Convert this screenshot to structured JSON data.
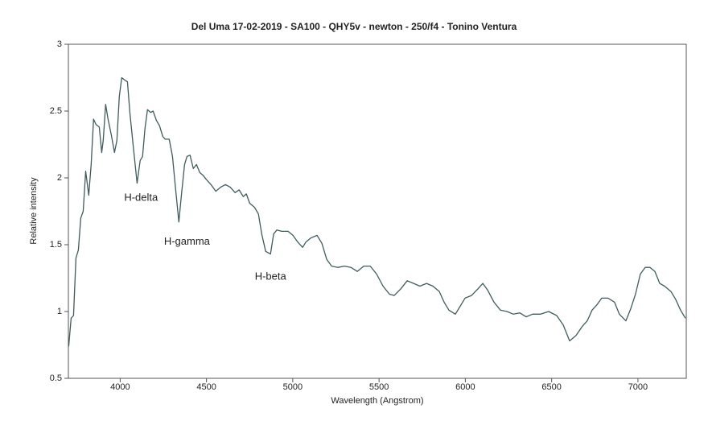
{
  "chart_data": {
    "type": "line",
    "title": "Del Uma 17-02-2019 - SA100 - QHY5v - newton - 250/f4 - Tonino Ventura",
    "xlabel": "Wavelength (Angstrom)",
    "ylabel": "Relative intensity",
    "color": "#3f5c5c",
    "xlim": [
      3700,
      7280
    ],
    "ylim": [
      0.5,
      3
    ],
    "xticks": [
      4000,
      4500,
      5000,
      5500,
      6000,
      6500,
      7000
    ],
    "yticks": [
      0.5,
      1,
      1.5,
      2,
      2.5,
      3
    ],
    "annotations": [
      {
        "text": "H-delta",
        "x": 4121,
        "y": 1.85
      },
      {
        "text": "H-gamma",
        "x": 4387,
        "y": 1.52
      },
      {
        "text": "H-beta",
        "x": 4871,
        "y": 1.26
      }
    ],
    "x": [
      3702,
      3716,
      3730,
      3744,
      3758,
      3772,
      3786,
      3800,
      3818,
      3832,
      3846,
      3860,
      3879,
      3893,
      3902,
      3916,
      3930,
      3949,
      3967,
      3981,
      3995,
      4009,
      4028,
      4042,
      4056,
      4075,
      4098,
      4116,
      4130,
      4144,
      4158,
      4177,
      4191,
      4210,
      4228,
      4247,
      4261,
      4284,
      4303,
      4321,
      4340,
      4354,
      4373,
      4387,
      4405,
      4424,
      4442,
      4461,
      4480,
      4498,
      4526,
      4554,
      4582,
      4610,
      4638,
      4666,
      4689,
      4713,
      4731,
      4750,
      4778,
      4801,
      4820,
      4843,
      4871,
      4889,
      4908,
      4936,
      4973,
      5001,
      5029,
      5057,
      5076,
      5104,
      5141,
      5169,
      5197,
      5225,
      5262,
      5300,
      5337,
      5374,
      5411,
      5449,
      5486,
      5523,
      5560,
      5588,
      5626,
      5663,
      5700,
      5737,
      5775,
      5812,
      5849,
      5877,
      5905,
      5942,
      5970,
      5998,
      6036,
      6073,
      6101,
      6129,
      6166,
      6203,
      6241,
      6278,
      6315,
      6352,
      6389,
      6436,
      6483,
      6529,
      6567,
      6604,
      6641,
      6678,
      6706,
      6734,
      6762,
      6790,
      6827,
      6864,
      6892,
      6930,
      6958,
      6986,
      7014,
      7042,
      7070,
      7098,
      7126,
      7154,
      7191,
      7219,
      7247,
      7275
    ],
    "values": [
      0.74,
      0.95,
      0.97,
      1.4,
      1.46,
      1.7,
      1.75,
      2.05,
      1.87,
      2.1,
      2.44,
      2.4,
      2.38,
      2.19,
      2.28,
      2.55,
      2.44,
      2.32,
      2.19,
      2.28,
      2.61,
      2.75,
      2.73,
      2.72,
      2.49,
      2.25,
      1.96,
      2.13,
      2.16,
      2.37,
      2.51,
      2.49,
      2.5,
      2.43,
      2.39,
      2.31,
      2.29,
      2.29,
      2.16,
      1.92,
      1.67,
      1.86,
      2.1,
      2.16,
      2.17,
      2.07,
      2.1,
      2.04,
      2.02,
      1.99,
      1.95,
      1.9,
      1.93,
      1.95,
      1.93,
      1.89,
      1.91,
      1.86,
      1.88,
      1.81,
      1.78,
      1.73,
      1.58,
      1.45,
      1.43,
      1.58,
      1.61,
      1.6,
      1.6,
      1.57,
      1.52,
      1.48,
      1.52,
      1.55,
      1.57,
      1.51,
      1.39,
      1.34,
      1.33,
      1.34,
      1.33,
      1.3,
      1.34,
      1.34,
      1.28,
      1.19,
      1.13,
      1.12,
      1.17,
      1.23,
      1.21,
      1.19,
      1.21,
      1.19,
      1.15,
      1.07,
      1.01,
      0.98,
      1.04,
      1.1,
      1.12,
      1.17,
      1.21,
      1.16,
      1.07,
      1.01,
      1.0,
      0.98,
      0.99,
      0.96,
      0.98,
      0.98,
      1.0,
      0.97,
      0.9,
      0.78,
      0.82,
      0.89,
      0.93,
      1.01,
      1.05,
      1.1,
      1.1,
      1.07,
      0.98,
      0.93,
      1.02,
      1.13,
      1.28,
      1.33,
      1.33,
      1.3,
      1.21,
      1.19,
      1.15,
      1.09,
      1.01,
      0.95
    ]
  }
}
